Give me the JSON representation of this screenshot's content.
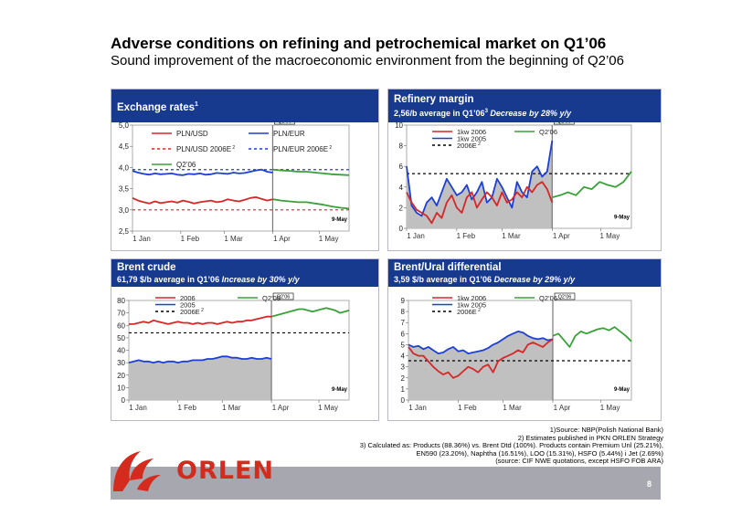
{
  "page": {
    "title": "Adverse conditions on refining and petrochemical market on Q1’06",
    "subtitle": "Sound improvement  of the macroeconomic environment from the beginning of Q2’06",
    "page_number": "8",
    "logo_text": "ORLEN"
  },
  "footnotes": [
    "1)Source: NBP(Polish National Bank)",
    "2) Estimates published in PKN ORLEN Strategy",
    "3) Calculated as: Products (88.36%) vs. Brent Dtd (100%). Products contain Premium Unl (25.21%),",
    "EN590 (23.20%),  Naphtha (16.51%), LOO (15.31%), HSFO (5.44%) i Jet (2.69%)",
    "(source: CIF NWE quotations, except HSFO FOB ARA)"
  ],
  "colors": {
    "header": "#173a8f",
    "red": "#d62728",
    "blue": "#1c3fd6",
    "green": "#3aa13a",
    "area": "#c0c0c0"
  },
  "panels": {
    "exchange": {
      "title": "Exchange rates",
      "title_sup": "1"
    },
    "margin": {
      "title": "Refinery margin",
      "subtitle_a": "2,56/b average in Q1’06",
      "subtitle_sup": "3",
      "subtitle_b": " Decrease by 28%  y/y"
    },
    "brent": {
      "title": "Brent crude",
      "subtitle_a": "61,79 $/b average in Q1’06",
      "subtitle_b": " Increase by 30%  y/y"
    },
    "ural": {
      "title": "Brent/Ural differential",
      "subtitle_a": "3,59 $/b average in Q1’06",
      "subtitle_b": " Decrease by 29% y/y"
    }
  },
  "chart_data": [
    {
      "id": "exchange",
      "type": "line",
      "yticks": [
        "2,5",
        "3,0",
        "3,5",
        "4,0",
        "4,5",
        "5,0"
      ],
      "ylim": [
        2.5,
        5.0
      ],
      "xticks": [
        "1 Jan",
        "1 Feb",
        "1 Mar",
        "1 Apr",
        "1 May"
      ],
      "q2_marker": "Q2’06",
      "end_label": "9-May",
      "legend": [
        {
          "name": "PLN/USD",
          "color": "#d62728",
          "dash": false
        },
        {
          "name": "PLN/EUR",
          "color": "#1c3fd6",
          "dash": false
        },
        {
          "name": "PLN/USD 2006E",
          "sup": "2",
          "color": "#d62728",
          "dash": true
        },
        {
          "name": "PLN/EUR 2006E",
          "sup": "2",
          "color": "#1c3fd6",
          "dash": true
        },
        {
          "name": "Q2’06",
          "color": "#3aa13a",
          "dash": false
        }
      ],
      "hlines": [
        {
          "y": 3.0,
          "color": "#d62728"
        },
        {
          "y": 3.95,
          "color": "#1c3fd6"
        }
      ],
      "series": [
        {
          "name": "PLN/USD",
          "color": "#d62728",
          "day0": 0,
          "values": [
            3.28,
            3.22,
            3.18,
            3.15,
            3.2,
            3.16,
            3.18,
            3.2,
            3.17,
            3.22,
            3.19,
            3.15,
            3.18,
            3.2,
            3.22,
            3.18,
            3.2,
            3.25,
            3.22,
            3.2,
            3.24,
            3.28,
            3.3,
            3.26,
            3.22,
            3.25
          ]
        },
        {
          "name": "PLN/EUR",
          "color": "#1c3fd6",
          "day0": 0,
          "values": [
            3.92,
            3.88,
            3.85,
            3.83,
            3.86,
            3.84,
            3.85,
            3.86,
            3.83,
            3.82,
            3.85,
            3.84,
            3.86,
            3.83,
            3.84,
            3.87,
            3.86,
            3.85,
            3.88,
            3.86,
            3.87,
            3.9,
            3.93,
            3.95,
            3.9,
            3.88
          ]
        },
        {
          "name": "Q2’06 PLN/USD",
          "color": "#3aa13a",
          "day0": 90,
          "values": [
            3.25,
            3.22,
            3.2,
            3.18,
            3.18,
            3.15,
            3.12,
            3.08,
            3.05,
            3.03
          ]
        },
        {
          "name": "Q2’06 PLN/EUR",
          "color": "#3aa13a",
          "day0": 90,
          "values": [
            3.95,
            3.93,
            3.92,
            3.9,
            3.9,
            3.88,
            3.86,
            3.84,
            3.83,
            3.82
          ]
        }
      ]
    },
    {
      "id": "margin",
      "type": "line",
      "yticks": [
        "0",
        "2",
        "4",
        "6",
        "8",
        "10"
      ],
      "ylim": [
        0,
        10
      ],
      "xticks": [
        "1 Jan",
        "1 Feb",
        "1 Mar",
        "1 Apr",
        "1 May"
      ],
      "q2_marker": "Q2’06",
      "end_label": "9-May",
      "legend": [
        {
          "name": "1kw 2006",
          "color": "#d62728",
          "dash": false
        },
        {
          "name": "1kw 2005",
          "color": "#1c3fd6",
          "dash": false
        },
        {
          "name": "2006E",
          "sup": "2",
          "color": "#000000",
          "dash": true
        },
        {
          "name": "Q2’06",
          "color": "#3aa13a",
          "dash": false
        }
      ],
      "hlines": [
        {
          "y": 5.3,
          "color": "#000000"
        }
      ],
      "series": [
        {
          "name": "1kw 2005",
          "color": "#1c3fd6",
          "area": true,
          "day0": 0,
          "values": [
            6.0,
            2.2,
            1.5,
            1.2,
            2.5,
            3.0,
            2.2,
            3.5,
            4.8,
            4.0,
            3.2,
            3.5,
            4.2,
            2.8,
            3.5,
            4.5,
            2.5,
            3.0,
            4.8,
            4.0,
            3.0,
            2.0,
            4.5,
            3.5,
            3.0,
            5.5,
            6.0,
            5.0,
            5.5,
            8.5
          ]
        },
        {
          "name": "1kw 2006",
          "color": "#d62728",
          "day0": 0,
          "values": [
            3.5,
            2.5,
            1.8,
            1.5,
            1.2,
            0.5,
            1.5,
            1.0,
            2.5,
            3.2,
            2.0,
            1.5,
            3.0,
            3.5,
            2.0,
            2.8,
            3.5,
            3.0,
            2.2,
            3.5,
            2.5,
            2.8,
            3.5,
            3.0,
            4.0,
            3.5,
            4.2,
            4.5,
            3.8,
            2.5
          ]
        },
        {
          "name": "Q2’06",
          "color": "#3aa13a",
          "day0": 90,
          "values": [
            3.0,
            3.2,
            3.5,
            3.2,
            4.0,
            3.8,
            4.5,
            4.2,
            4.0,
            4.5,
            5.5
          ]
        }
      ]
    },
    {
      "id": "brent",
      "type": "line",
      "yticks": [
        "0",
        "10",
        "20",
        "30",
        "40",
        "50",
        "60",
        "70",
        "80"
      ],
      "ylim": [
        0,
        80
      ],
      "xticks": [
        "1 Jan",
        "1 Feb",
        "1 Mar",
        "1 Apr",
        "1 May"
      ],
      "q2_marker": "Q2’06",
      "end_label": "9-May",
      "legend": [
        {
          "name": "2006",
          "color": "#d62728",
          "dash": false
        },
        {
          "name": "2005",
          "color": "#1c3fd6",
          "dash": false
        },
        {
          "name": "2006E",
          "sup": "2",
          "color": "#000000",
          "dash": true
        },
        {
          "name": "Q2’06",
          "color": "#3aa13a",
          "dash": false
        }
      ],
      "hlines": [
        {
          "y": 54,
          "color": "#000000"
        }
      ],
      "series": [
        {
          "name": "2005",
          "color": "#1c3fd6",
          "area": true,
          "day0": 0,
          "values": [
            30,
            31,
            32,
            31,
            31,
            30,
            31,
            30,
            31,
            31,
            30,
            31,
            31,
            32,
            32,
            32,
            33,
            33,
            34,
            35,
            35,
            34,
            34,
            33,
            33,
            34,
            33,
            33,
            34,
            33
          ]
        },
        {
          "name": "2006",
          "color": "#d62728",
          "day0": 0,
          "values": [
            61,
            61,
            62,
            63,
            62,
            64,
            63,
            62,
            61,
            62,
            63,
            62,
            62,
            61,
            62,
            61,
            62,
            62,
            61,
            62,
            63,
            62,
            63,
            63,
            64,
            64,
            65,
            66,
            67,
            67
          ]
        },
        {
          "name": "Q2’06",
          "color": "#3aa13a",
          "day0": 90,
          "values": [
            67,
            68,
            69,
            70,
            71,
            72,
            73,
            73,
            72,
            71,
            72,
            73,
            74,
            73,
            72,
            70,
            71,
            72
          ]
        }
      ]
    },
    {
      "id": "ural",
      "type": "line",
      "yticks": [
        "0",
        "1",
        "2",
        "3",
        "4",
        "5",
        "6",
        "7",
        "8",
        "9"
      ],
      "ylim": [
        0,
        9
      ],
      "xticks": [
        "1 Jan",
        "1 Feb",
        "1 Mar",
        "1 Apr",
        "1 May"
      ],
      "q2_marker": "Q2’06",
      "end_label": "9-May",
      "legend": [
        {
          "name": "1kw 2006",
          "color": "#d62728",
          "dash": false
        },
        {
          "name": "1kw 2005",
          "color": "#1c3fd6",
          "dash": false
        },
        {
          "name": "2006E",
          "sup": "2",
          "color": "#000000",
          "dash": true
        },
        {
          "name": "Q2’06",
          "color": "#3aa13a",
          "dash": false
        }
      ],
      "hlines": [
        {
          "y": 3.55,
          "color": "#000000"
        }
      ],
      "series": [
        {
          "name": "1kw 2005",
          "color": "#1c3fd6",
          "area": true,
          "day0": 0,
          "values": [
            5.0,
            4.8,
            4.9,
            4.6,
            4.8,
            4.5,
            4.2,
            4.3,
            4.6,
            4.8,
            4.4,
            4.5,
            4.2,
            4.3,
            4.4,
            4.5,
            4.7,
            5.0,
            5.2,
            5.5,
            5.8,
            6.0,
            6.2,
            6.1,
            5.8,
            5.6,
            5.5,
            5.6,
            5.4,
            5.5
          ]
        },
        {
          "name": "1kw 2006",
          "color": "#d62728",
          "day0": 0,
          "values": [
            4.8,
            4.2,
            4.0,
            4.0,
            3.5,
            3.0,
            2.6,
            2.3,
            2.5,
            2.0,
            2.2,
            2.6,
            3.0,
            2.8,
            2.5,
            3.0,
            3.2,
            2.5,
            3.5,
            3.8,
            4.0,
            4.2,
            4.5,
            4.3,
            5.0,
            5.2,
            5.0,
            4.8,
            5.2,
            5.5
          ]
        },
        {
          "name": "Q2’06",
          "color": "#3aa13a",
          "day0": 90,
          "values": [
            5.8,
            6.0,
            5.4,
            4.8,
            5.8,
            6.2,
            6.0,
            6.2,
            6.4,
            6.5,
            6.3,
            6.6,
            6.2,
            5.8,
            5.3
          ]
        }
      ]
    }
  ]
}
